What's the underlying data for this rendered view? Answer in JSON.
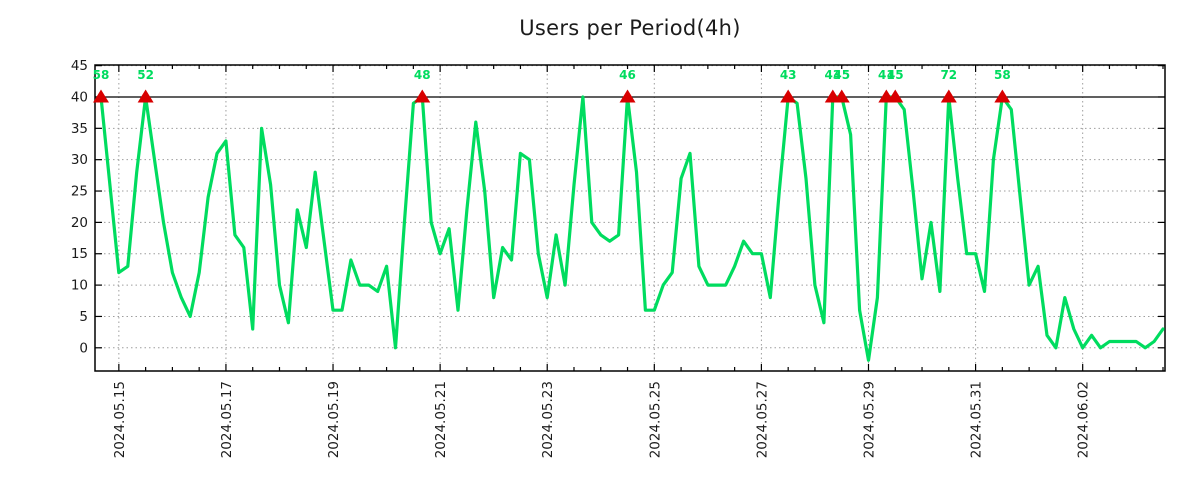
{
  "title": "Users per Period(4h)",
  "chart_data": {
    "type": "line",
    "title": "Users per Period(4h)",
    "series_name": "users",
    "x_start": "2024-05-14 16:00",
    "x_step_hours": 4,
    "values": [
      58,
      26,
      12,
      13,
      28,
      52,
      30,
      20,
      12,
      8,
      5,
      12,
      24,
      31,
      33,
      18,
      16,
      3,
      35,
      26,
      10,
      4,
      22,
      16,
      28,
      17,
      6,
      6,
      14,
      10,
      10,
      9,
      13,
      0,
      20,
      39,
      48,
      20,
      15,
      19,
      6,
      22,
      36,
      25,
      8,
      16,
      14,
      31,
      30,
      15,
      8,
      18,
      10,
      26,
      40,
      20,
      18,
      17,
      18,
      46,
      28,
      6,
      6,
      10,
      12,
      27,
      31,
      13,
      10,
      10,
      10,
      13,
      17,
      15,
      15,
      8,
      25,
      43,
      39,
      27,
      10,
      4,
      43,
      45,
      34,
      6,
      -2,
      8,
      41,
      45,
      38,
      25,
      11,
      20,
      9,
      72,
      27,
      15,
      15,
      9,
      30,
      58,
      38,
      24,
      10,
      13,
      2,
      0,
      8,
      3,
      0,
      2,
      0,
      1,
      1,
      1,
      1,
      0,
      1,
      3
    ],
    "cap_value": 40,
    "capped_peaks": [
      {
        "index": 0,
        "time": "2024-05-14 16:00",
        "value": 58
      },
      {
        "index": 5,
        "time": "2024-05-15 12:00",
        "value": 52
      },
      {
        "index": 36,
        "time": "2024-05-20 16:00",
        "value": 48
      },
      {
        "index": 59,
        "time": "2024-05-24 12:00",
        "value": 46
      },
      {
        "index": 77,
        "time": "2024-05-27 12:00",
        "value": 43
      },
      {
        "index": 82,
        "time": "2024-05-28 08:00",
        "value": 43
      },
      {
        "index": 83,
        "time": "2024-05-28 12:00",
        "value": 45
      },
      {
        "index": 88,
        "time": "2024-05-29 08:00",
        "value": 41
      },
      {
        "index": 89,
        "time": "2024-05-29 12:00",
        "value": 45
      },
      {
        "index": 95,
        "time": "2024-05-30 12:00",
        "value": 72
      },
      {
        "index": 101,
        "time": "2024-05-31 12:00",
        "value": 58
      }
    ],
    "xtick_labels": [
      "2024.05.15",
      "2024.05.17",
      "2024.05.19",
      "2024.05.21",
      "2024.05.23",
      "2024.05.25",
      "2024.05.27",
      "2024.05.29",
      "2024.05.31",
      "2024.06.02"
    ],
    "xtick_major_every_points": 12,
    "xtick_minor_every_points": 3,
    "ytick_values": [
      0,
      5,
      10,
      15,
      20,
      25,
      30,
      35,
      40,
      45
    ],
    "ylim": [
      -3.7,
      45.1
    ],
    "grid": "dotted",
    "legend": "none",
    "colors": {
      "line": "#00DC5F",
      "peak_label": "#00DC5F",
      "marker": "#D80000",
      "axis": "#000000",
      "grid": "#9e9e9e",
      "tick_text": "#1c1c1c",
      "title": "#1c1c1c",
      "background": "#ffffff",
      "cap_line": "#000000"
    }
  }
}
